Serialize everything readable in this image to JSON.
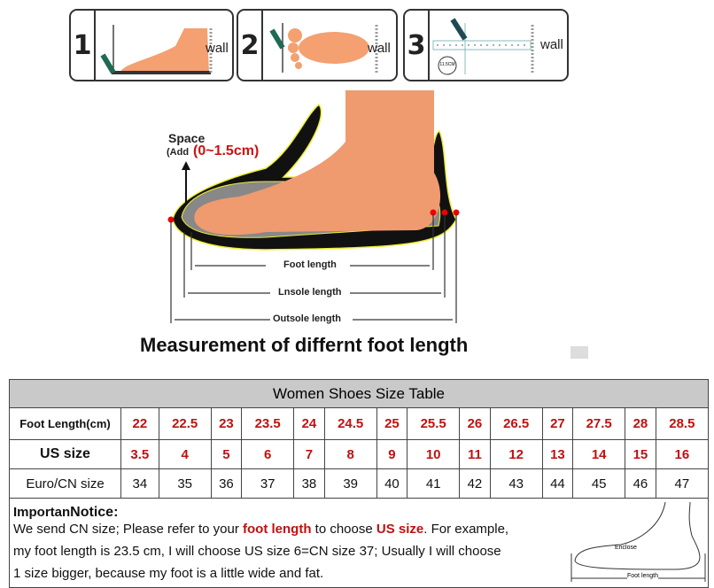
{
  "steps": [
    {
      "number": "1",
      "label": "wall"
    },
    {
      "number": "2",
      "label": "wall"
    },
    {
      "number": "3",
      "label": "wall",
      "badge": "11.5CM"
    }
  ],
  "diagram": {
    "space_label": "Space",
    "space_add_prefix": "(Add",
    "space_add_value": "(0~1.5cm)",
    "foot_length": "Foot length",
    "insole_length": "Lnsole length",
    "outsole_length": "Outsole length",
    "caption": "Measurement of differnt foot length"
  },
  "table": {
    "title": "Women Shoes Size Table",
    "rows": [
      {
        "header": "Foot Length(cm)",
        "values": [
          "22",
          "22.5",
          "23",
          "23.5",
          "24",
          "24.5",
          "25",
          "25.5",
          "26",
          "26.5",
          "27",
          "27.5",
          "28",
          "28.5"
        ]
      },
      {
        "header": "US size",
        "values": [
          "3.5",
          "4",
          "5",
          "6",
          "7",
          "8",
          "9",
          "10",
          "11",
          "12",
          "13",
          "14",
          "15",
          "16"
        ]
      },
      {
        "header": "Euro/CN size",
        "values": [
          "34",
          "35",
          "36",
          "37",
          "38",
          "39",
          "40",
          "41",
          "42",
          "43",
          "44",
          "45",
          "46",
          "47"
        ]
      }
    ],
    "accent_color": "#c01010"
  },
  "notice": {
    "heading_a": "Importan",
    "heading_b": "Notice:",
    "line1_a": "We send CN size; Please refer to your ",
    "line1_b": "foot length",
    "line1_c": " to choose ",
    "line1_d": "US size",
    "line1_e": ". For example,",
    "line2": "my foot length is 23.5 cm, I will choose US size 6=CN size 37; Usually I will choose",
    "line3": "1 size bigger, because my foot is a little wide and fat.",
    "sketch_enclose": "Enclose",
    "sketch_foot_length": "Foot length"
  }
}
